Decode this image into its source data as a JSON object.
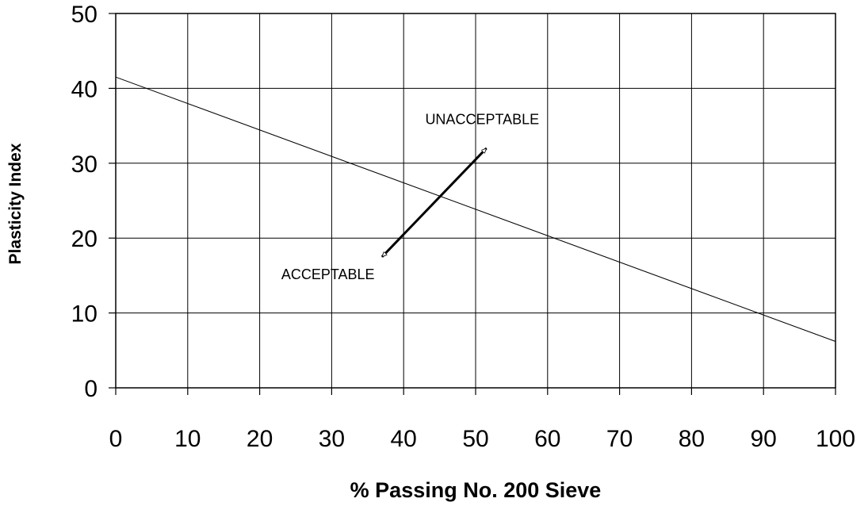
{
  "chart_data": {
    "type": "line",
    "title": "",
    "xlabel": "% Passing No. 200 Sieve",
    "ylabel": "Plasticity Index",
    "xlim": [
      0,
      100
    ],
    "ylim": [
      0,
      50
    ],
    "x_ticks": [
      "0",
      "10",
      "20",
      "30",
      "40",
      "50",
      "60",
      "70",
      "80",
      "90",
      "100"
    ],
    "y_ticks": [
      "0",
      "10",
      "20",
      "30",
      "40",
      "50"
    ],
    "grid": true,
    "legend": "none",
    "series": [
      {
        "x": [
          0,
          100
        ],
        "y": [
          41.5,
          6.2
        ]
      }
    ],
    "annotations": [
      {
        "text": "UNACCEPTABLE",
        "x": 43,
        "y": 35.2
      },
      {
        "text": "ACCEPTABLE",
        "x": 23,
        "y": 14.5
      }
    ],
    "arrow": {
      "from": [
        37,
        17.5
      ],
      "to": [
        51.5,
        32
      ]
    }
  }
}
